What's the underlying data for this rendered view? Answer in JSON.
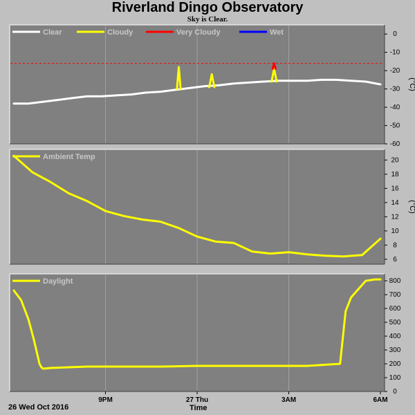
{
  "header": {
    "title": "Riverland Dingo Observatory",
    "subtitle": "Sky is Clear."
  },
  "footer": {
    "date_label": "26 Wed Oct 2016",
    "time_label": "Time"
  },
  "colors": {
    "background": "#c0c0c0",
    "plot_background": "#808080",
    "grid": "#a0a0a0",
    "clear": "#ffffff",
    "cloudy": "#ffff00",
    "very_cloudy": "#ff0000",
    "wet": "#0000ff",
    "threshold_line": "#ff0000"
  },
  "chart_data": [
    {
      "type": "line",
      "title": "",
      "xlabel": "",
      "ylabel": "(°C)",
      "xlim": [
        0,
        10
      ],
      "ylim": [
        -60,
        5
      ],
      "yticks": [
        0,
        -10,
        -20,
        -30,
        -40,
        -50,
        -60
      ],
      "legend_placement": "top-left",
      "legend": [
        "Clear",
        "Cloudy",
        "Very Cloudy",
        "Wet"
      ],
      "threshold": -16,
      "grid": true,
      "series": [
        {
          "name": "Clear",
          "color": "#ffffff",
          "x": [
            0,
            0.4,
            0.8,
            1.2,
            1.6,
            2.0,
            2.4,
            2.8,
            3.2,
            3.6,
            4.0,
            4.4,
            4.6,
            4.8,
            5.2,
            5.6,
            6.0,
            6.4,
            6.8,
            7.2,
            7.6,
            8.0,
            8.4,
            8.8,
            9.2,
            9.6,
            10.0
          ],
          "y": [
            -38,
            -38,
            -37,
            -36,
            -35,
            -34,
            -34,
            -33.5,
            -33,
            -32,
            -31.5,
            -30.5,
            -30,
            -29.5,
            -28.5,
            -28,
            -27,
            -26.5,
            -26,
            -25.5,
            -25.5,
            -25.5,
            -25,
            -25,
            -25.5,
            -26,
            -27.5
          ]
        },
        {
          "name": "Cloudy",
          "color": "#ffff00",
          "x": [
            4.45,
            4.5,
            4.55,
            5.33,
            5.4,
            5.47,
            7.03,
            7.1,
            7.17
          ],
          "y": [
            -30,
            -18,
            -30,
            -29,
            -22,
            -29,
            -26,
            -19,
            -26
          ]
        },
        {
          "name": "Very Cloudy",
          "color": "#ff0000",
          "x": [
            7.06,
            7.1,
            7.14
          ],
          "y": [
            -19,
            -16,
            -19
          ]
        },
        {
          "name": "Wet",
          "color": "#0000ff",
          "x": [],
          "y": []
        }
      ]
    },
    {
      "type": "line",
      "title": "",
      "xlabel": "",
      "ylabel": "(°C)",
      "xlim": [
        0,
        10
      ],
      "ylim": [
        5.3,
        21.5
      ],
      "yticks": [
        20,
        18,
        16,
        14,
        12,
        10,
        8,
        6
      ],
      "legend_placement": "top-left",
      "legend": [
        "Ambient Temp"
      ],
      "grid": true,
      "series": [
        {
          "name": "Ambient Temp",
          "color": "#ffff00",
          "x": [
            0,
            0.5,
            1.0,
            1.5,
            2.0,
            2.5,
            3.0,
            3.5,
            4.0,
            4.5,
            5.0,
            5.5,
            6.0,
            6.5,
            7.0,
            7.5,
            8.0,
            8.5,
            9.0,
            9.5,
            10.0
          ],
          "y": [
            20.6,
            18.3,
            16.9,
            15.3,
            14.2,
            12.8,
            12.1,
            11.6,
            11.3,
            10.4,
            9.2,
            8.5,
            8.3,
            7.1,
            6.8,
            7.0,
            6.7,
            6.5,
            6.4,
            6.6,
            8.9
          ]
        }
      ]
    },
    {
      "type": "line",
      "title": "",
      "xlabel": "Time",
      "ylabel": "",
      "xlim": [
        0,
        10
      ],
      "ylim": [
        0,
        850
      ],
      "yticks": [
        800,
        700,
        600,
        500,
        400,
        300,
        200,
        100,
        0
      ],
      "xticks": [
        {
          "x": 2.5,
          "label": "9PM"
        },
        {
          "x": 5.0,
          "label": "27 Thu"
        },
        {
          "x": 7.5,
          "label": "3AM"
        },
        {
          "x": 10.0,
          "label": "6AM"
        }
      ],
      "legend_placement": "top-left",
      "legend": [
        "Daylight"
      ],
      "grid": true,
      "series": [
        {
          "name": "Daylight",
          "color": "#ffff00",
          "x": [
            0,
            0.2,
            0.4,
            0.55,
            0.7,
            0.75,
            0.8,
            1.0,
            2.0,
            3.0,
            4.0,
            5.0,
            6.0,
            7.0,
            8.0,
            8.9,
            9.05,
            9.2,
            9.4,
            9.6,
            9.85,
            10.0
          ],
          "y": [
            730,
            660,
            520,
            370,
            200,
            175,
            165,
            170,
            180,
            180,
            180,
            185,
            185,
            185,
            185,
            200,
            580,
            680,
            740,
            800,
            810,
            810
          ]
        }
      ]
    }
  ]
}
